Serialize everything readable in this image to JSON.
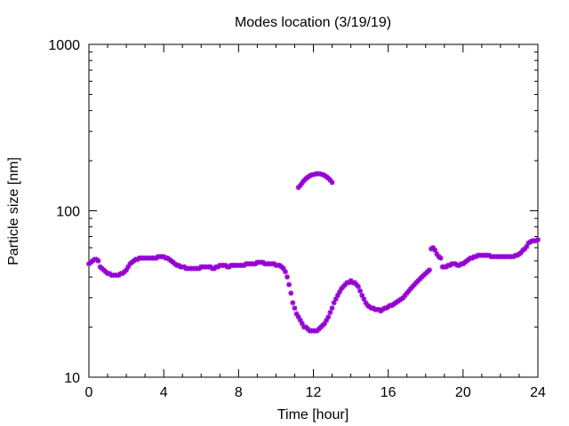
{
  "chart_data": {
    "type": "scatter",
    "title": "Modes location (3/19/19)",
    "xlabel": "Time [hour]",
    "ylabel": "Particle size [nm]",
    "xlim": [
      0,
      24
    ],
    "ylim": [
      10,
      1000
    ],
    "yscale": "log",
    "grid": false,
    "legend": "none",
    "x_ticks": [
      0,
      4,
      8,
      12,
      16,
      20,
      24
    ],
    "x_tick_labels": [
      "0",
      "4",
      "8",
      "12",
      "16",
      "20",
      "24"
    ],
    "y_ticks": [
      10,
      100,
      1000
    ],
    "y_tick_labels": [
      "10",
      "100",
      "1000"
    ],
    "marker_color": "#9400d3",
    "series": [
      {
        "points": [
          [
            0.0,
            48
          ],
          [
            0.1,
            49
          ],
          [
            0.2,
            50
          ],
          [
            0.3,
            51
          ],
          [
            0.4,
            51
          ],
          [
            0.5,
            50
          ],
          [
            0.6,
            46
          ],
          [
            0.7,
            45
          ],
          [
            0.8,
            44
          ],
          [
            0.9,
            43
          ],
          [
            1.0,
            42
          ],
          [
            1.1,
            42
          ],
          [
            1.2,
            41
          ],
          [
            1.3,
            41
          ],
          [
            1.4,
            41
          ],
          [
            1.5,
            41
          ],
          [
            1.6,
            41
          ],
          [
            1.7,
            42
          ],
          [
            1.8,
            42
          ],
          [
            1.9,
            43
          ],
          [
            2.0,
            44
          ],
          [
            2.1,
            46
          ],
          [
            2.2,
            48
          ],
          [
            2.3,
            49
          ],
          [
            2.4,
            50
          ],
          [
            2.5,
            51
          ],
          [
            2.6,
            51
          ],
          [
            2.7,
            52
          ],
          [
            2.8,
            52
          ],
          [
            2.9,
            52
          ],
          [
            3.0,
            52
          ],
          [
            3.1,
            52
          ],
          [
            3.2,
            52
          ],
          [
            3.3,
            52
          ],
          [
            3.4,
            52
          ],
          [
            3.5,
            52
          ],
          [
            3.6,
            52
          ],
          [
            3.7,
            53
          ],
          [
            3.8,
            53
          ],
          [
            3.9,
            53
          ],
          [
            4.0,
            53
          ],
          [
            4.1,
            52
          ],
          [
            4.2,
            52
          ],
          [
            4.3,
            51
          ],
          [
            4.4,
            50
          ],
          [
            4.5,
            49
          ],
          [
            4.6,
            48
          ],
          [
            4.7,
            47
          ],
          [
            4.8,
            47
          ],
          [
            4.9,
            46
          ],
          [
            5.0,
            46
          ],
          [
            5.1,
            46
          ],
          [
            5.2,
            45
          ],
          [
            5.3,
            45
          ],
          [
            5.4,
            45
          ],
          [
            5.5,
            45
          ],
          [
            5.6,
            45
          ],
          [
            5.7,
            45
          ],
          [
            5.8,
            45
          ],
          [
            5.9,
            45
          ],
          [
            6.0,
            46
          ],
          [
            6.1,
            46
          ],
          [
            6.2,
            46
          ],
          [
            6.3,
            46
          ],
          [
            6.4,
            46
          ],
          [
            6.5,
            46
          ],
          [
            6.6,
            45
          ],
          [
            6.7,
            45
          ],
          [
            6.8,
            46
          ],
          [
            6.9,
            46
          ],
          [
            7.0,
            47
          ],
          [
            7.1,
            47
          ],
          [
            7.2,
            47
          ],
          [
            7.3,
            47
          ],
          [
            7.4,
            46
          ],
          [
            7.5,
            46
          ],
          [
            7.6,
            47
          ],
          [
            7.7,
            47
          ],
          [
            7.8,
            47
          ],
          [
            7.9,
            47
          ],
          [
            8.0,
            47
          ],
          [
            8.1,
            47
          ],
          [
            8.2,
            47
          ],
          [
            8.3,
            47
          ],
          [
            8.4,
            48
          ],
          [
            8.5,
            48
          ],
          [
            8.6,
            48
          ],
          [
            8.7,
            48
          ],
          [
            8.8,
            48
          ],
          [
            8.9,
            48
          ],
          [
            9.0,
            49
          ],
          [
            9.1,
            49
          ],
          [
            9.2,
            49
          ],
          [
            9.3,
            49
          ],
          [
            9.4,
            48
          ],
          [
            9.5,
            48
          ],
          [
            9.6,
            48
          ],
          [
            9.7,
            48
          ],
          [
            9.8,
            48
          ],
          [
            9.9,
            48
          ],
          [
            10.0,
            47
          ],
          [
            10.1,
            47
          ],
          [
            10.2,
            47
          ],
          [
            10.3,
            46
          ],
          [
            10.4,
            45
          ],
          [
            10.5,
            43
          ],
          [
            10.6,
            40
          ],
          [
            10.7,
            36
          ],
          [
            10.8,
            32
          ],
          [
            10.9,
            28
          ],
          [
            11.0,
            26
          ],
          [
            11.1,
            24
          ],
          [
            11.2,
            23
          ],
          [
            11.3,
            22
          ],
          [
            11.4,
            21
          ],
          [
            11.5,
            20
          ],
          [
            11.6,
            20
          ],
          [
            11.7,
            19.5
          ],
          [
            11.8,
            19
          ],
          [
            11.9,
            19
          ],
          [
            12.0,
            19
          ],
          [
            12.1,
            19
          ],
          [
            12.2,
            19
          ],
          [
            12.3,
            19.5
          ],
          [
            12.4,
            20
          ],
          [
            12.5,
            20.5
          ],
          [
            12.6,
            21
          ],
          [
            12.7,
            22
          ],
          [
            12.8,
            23
          ],
          [
            12.9,
            24.5
          ],
          [
            13.0,
            26
          ],
          [
            13.1,
            28
          ],
          [
            13.2,
            29.5
          ],
          [
            13.3,
            31
          ],
          [
            13.4,
            32.5
          ],
          [
            13.5,
            34
          ],
          [
            13.6,
            35
          ],
          [
            13.7,
            36
          ],
          [
            13.8,
            37
          ],
          [
            13.9,
            37
          ],
          [
            14.0,
            38
          ],
          [
            14.1,
            37
          ],
          [
            14.2,
            37
          ],
          [
            14.3,
            36
          ],
          [
            14.4,
            35
          ],
          [
            14.5,
            33
          ],
          [
            14.6,
            31
          ],
          [
            14.7,
            29.5
          ],
          [
            14.8,
            28
          ],
          [
            14.9,
            27
          ],
          [
            15.0,
            26.5
          ],
          [
            15.1,
            26
          ],
          [
            15.2,
            26
          ],
          [
            15.3,
            25.5
          ],
          [
            15.4,
            25.5
          ],
          [
            15.5,
            25.5
          ],
          [
            15.6,
            25
          ],
          [
            15.7,
            25.5
          ],
          [
            15.8,
            26
          ],
          [
            15.9,
            26
          ],
          [
            16.0,
            26.5
          ],
          [
            16.1,
            27
          ],
          [
            16.2,
            27
          ],
          [
            16.3,
            27.5
          ],
          [
            16.4,
            28
          ],
          [
            16.5,
            28.5
          ],
          [
            16.6,
            29
          ],
          [
            16.7,
            29.5
          ],
          [
            16.8,
            30
          ],
          [
            16.9,
            31
          ],
          [
            17.0,
            32
          ],
          [
            17.1,
            33
          ],
          [
            17.2,
            34
          ],
          [
            17.3,
            35
          ],
          [
            17.4,
            36
          ],
          [
            17.5,
            37
          ],
          [
            17.6,
            38
          ],
          [
            17.7,
            39
          ],
          [
            17.8,
            40
          ],
          [
            17.9,
            41
          ],
          [
            18.0,
            42
          ],
          [
            18.1,
            43
          ],
          [
            18.2,
            44
          ],
          [
            18.3,
            59
          ],
          [
            18.4,
            60
          ],
          [
            18.5,
            58
          ],
          [
            18.6,
            55
          ],
          [
            18.7,
            53
          ],
          [
            18.8,
            52
          ],
          [
            18.9,
            46
          ],
          [
            19.0,
            46
          ],
          [
            19.1,
            46
          ],
          [
            19.2,
            47
          ],
          [
            19.3,
            47
          ],
          [
            19.4,
            48
          ],
          [
            19.5,
            48
          ],
          [
            19.6,
            48
          ],
          [
            19.7,
            47
          ],
          [
            19.8,
            47
          ],
          [
            19.9,
            48
          ],
          [
            20.0,
            48
          ],
          [
            20.1,
            49
          ],
          [
            20.2,
            50
          ],
          [
            20.3,
            51
          ],
          [
            20.4,
            52
          ],
          [
            20.5,
            52
          ],
          [
            20.6,
            53
          ],
          [
            20.7,
            53
          ],
          [
            20.8,
            54
          ],
          [
            20.9,
            54
          ],
          [
            21.0,
            54
          ],
          [
            21.1,
            54
          ],
          [
            21.2,
            54
          ],
          [
            21.3,
            54
          ],
          [
            21.4,
            54
          ],
          [
            21.5,
            53
          ],
          [
            21.6,
            53
          ],
          [
            21.7,
            53
          ],
          [
            21.8,
            53
          ],
          [
            21.9,
            53
          ],
          [
            22.0,
            53
          ],
          [
            22.1,
            53
          ],
          [
            22.2,
            53
          ],
          [
            22.3,
            53
          ],
          [
            22.4,
            53
          ],
          [
            22.5,
            53
          ],
          [
            22.6,
            53
          ],
          [
            22.7,
            53
          ],
          [
            22.8,
            54
          ],
          [
            22.9,
            54
          ],
          [
            23.0,
            55
          ],
          [
            23.1,
            56
          ],
          [
            23.2,
            58
          ],
          [
            23.3,
            59
          ],
          [
            23.4,
            61
          ],
          [
            23.5,
            64
          ],
          [
            23.6,
            65
          ],
          [
            23.7,
            66
          ],
          [
            23.8,
            66
          ],
          [
            23.9,
            66
          ],
          [
            24.0,
            67
          ]
        ]
      },
      {
        "points": [
          [
            11.2,
            138
          ],
          [
            11.3,
            142
          ],
          [
            11.4,
            147
          ],
          [
            11.5,
            152
          ],
          [
            11.6,
            156
          ],
          [
            11.7,
            159
          ],
          [
            11.8,
            162
          ],
          [
            11.9,
            164
          ],
          [
            12.0,
            165
          ],
          [
            12.1,
            166
          ],
          [
            12.2,
            167
          ],
          [
            12.3,
            167
          ],
          [
            12.4,
            166
          ],
          [
            12.5,
            165
          ],
          [
            12.6,
            163
          ],
          [
            12.7,
            160
          ],
          [
            12.8,
            157
          ],
          [
            12.9,
            153
          ],
          [
            13.0,
            148
          ]
        ]
      }
    ]
  }
}
